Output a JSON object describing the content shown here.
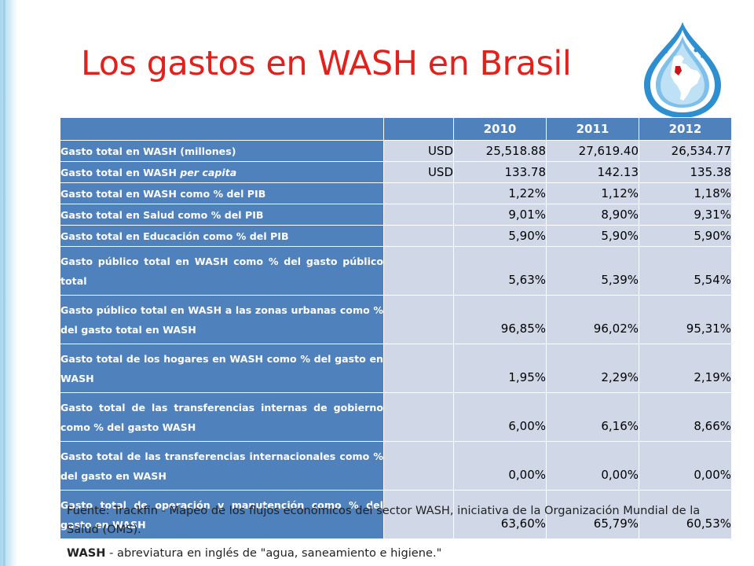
{
  "slide": {
    "title": "Los gastos en WASH en Brasil"
  },
  "table": {
    "headers": [
      "",
      "",
      "2010",
      "2011",
      "2012"
    ],
    "rows": [
      {
        "label": "Gasto total en WASH (millones)",
        "unit": "USD",
        "v2010": "25,518.88",
        "v2011": "27,619.40",
        "v2012": "26,534.77"
      },
      {
        "label_main": "Gasto total en WASH ",
        "label_italic": "per capita",
        "unit": "USD",
        "v2010": "133.78",
        "v2011": "142.13",
        "v2012": "135.38"
      },
      {
        "label": "Gasto total en WASH como % del PIB",
        "unit": "",
        "v2010": "1,22%",
        "v2011": "1,12%",
        "v2012": "1,18%"
      },
      {
        "label": "Gasto total en Salud como % del PIB",
        "unit": "",
        "v2010": "9,01%",
        "v2011": "8,90%",
        "v2012": "9,31%"
      },
      {
        "label": "Gasto total en Educación como % del PIB",
        "unit": "",
        "v2010": "5,90%",
        "v2011": "5,90%",
        "v2012": "5,90%"
      },
      {
        "label": "Gasto público total en WASH como % del gasto público total",
        "unit": "",
        "v2010": "5,63%",
        "v2011": "5,39%",
        "v2012": "5,54%"
      },
      {
        "label": "Gasto público total en WASH a las zonas urbanas como % del gasto total en WASH",
        "unit": "",
        "v2010": "96,85%",
        "v2011": "96,02%",
        "v2012": "95,31%"
      },
      {
        "label": "Gasto total de los hogares en WASH como % del gasto en WASH",
        "unit": "",
        "v2010": "1,95%",
        "v2011": "2,29%",
        "v2012": "2,19%"
      },
      {
        "label": "Gasto total de las transferencias internas de gobierno como % del gasto WASH",
        "unit": "",
        "v2010": "6,00%",
        "v2011": "6,16%",
        "v2012": "8,66%"
      },
      {
        "label": "Gasto total de las transferencias internacionales como % del gasto en WASH",
        "unit": "",
        "v2010": "0,00%",
        "v2011": "0,00%",
        "v2012": "0,00%"
      },
      {
        "label": "Gasto total de operación y manutención como % del gasto en WASH",
        "unit": "",
        "v2010": "63,60%",
        "v2011": "65,79%",
        "v2012": "60,53%"
      }
    ]
  },
  "footer": {
    "source": "Fuente: Trackfin - Mapeo de los flujos económicos del sector WASH, iniciativa de la Organización Mundial de la Salud (OMS).",
    "abbr_term": "WASH",
    "abbr_text": " - abreviatura en inglés de \"agua, saneamiento e higiene.\""
  },
  "colors": {
    "title": "#e3211c",
    "header_blue": "#4f81bd",
    "cell_gray_blue": "#d0d8e8",
    "logo_blue": "#2e8fd0",
    "map_red": "#c4161c"
  },
  "icons": {
    "logo": "water-drop-americas-logo-icon"
  }
}
